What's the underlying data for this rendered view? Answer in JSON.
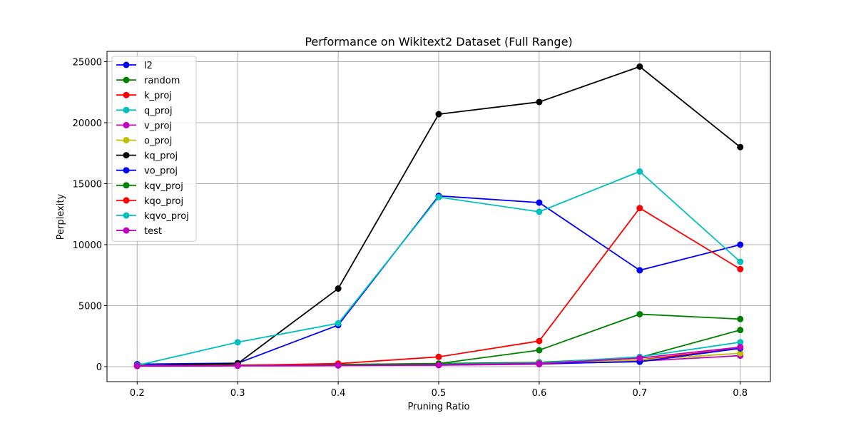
{
  "chart_data": {
    "type": "line",
    "title": "Performance on Wikitext2 Dataset (Full Range)",
    "xlabel": "Pruning Ratio",
    "ylabel": "Perplexity",
    "x": [
      0.2,
      0.3,
      0.4,
      0.5,
      0.6,
      0.7,
      0.8
    ],
    "xlim": [
      0.17,
      0.83
    ],
    "ylim": [
      -1230,
      25850
    ],
    "x_ticks": [
      "0.2",
      "0.3",
      "0.4",
      "0.5",
      "0.6",
      "0.7",
      "0.8"
    ],
    "y_ticks": [
      0,
      5000,
      10000,
      15000,
      20000,
      25000
    ],
    "y_tick_labels": [
      "0",
      "5000",
      "10000",
      "15000",
      "20000",
      "25000"
    ],
    "grid": true,
    "legend_position": "upper-left",
    "series": [
      {
        "name": "l2",
        "color": "#0000ff",
        "values": [
          200,
          280,
          3400,
          14000,
          13450,
          7900,
          10000
        ]
      },
      {
        "name": "random",
        "color": "#008000",
        "values": [
          80,
          110,
          150,
          250,
          350,
          750,
          3000
        ]
      },
      {
        "name": "k_proj",
        "color": "#ff0000",
        "values": [
          60,
          80,
          120,
          150,
          250,
          550,
          1500
        ]
      },
      {
        "name": "q_proj",
        "color": "#00bfbf",
        "values": [
          60,
          90,
          130,
          180,
          300,
          800,
          2000
        ]
      },
      {
        "name": "v_proj",
        "color": "#bf00bf",
        "values": [
          60,
          70,
          100,
          120,
          200,
          450,
          900
        ]
      },
      {
        "name": "o_proj",
        "color": "#bfbf00",
        "values": [
          60,
          75,
          110,
          140,
          250,
          550,
          1100
        ]
      },
      {
        "name": "kq_proj",
        "color": "#000000",
        "values": [
          60,
          250,
          6400,
          20700,
          21700,
          24600,
          18000
        ]
      },
      {
        "name": "vo_proj",
        "color": "#0000ff",
        "values": [
          60,
          80,
          110,
          150,
          250,
          400,
          1500
        ]
      },
      {
        "name": "kqv_proj",
        "color": "#008000",
        "values": [
          60,
          130,
          180,
          250,
          1350,
          4300,
          3900
        ]
      },
      {
        "name": "kqo_proj",
        "color": "#ff0000",
        "values": [
          60,
          100,
          250,
          800,
          2100,
          13000,
          8000
        ]
      },
      {
        "name": "kqvo_proj",
        "color": "#00bfbf",
        "values": [
          100,
          2000,
          3550,
          13900,
          12700,
          16000,
          8600
        ]
      },
      {
        "name": "test",
        "color": "#bf00bf",
        "values": [
          60,
          80,
          100,
          130,
          250,
          700,
          1600
        ]
      }
    ]
  }
}
